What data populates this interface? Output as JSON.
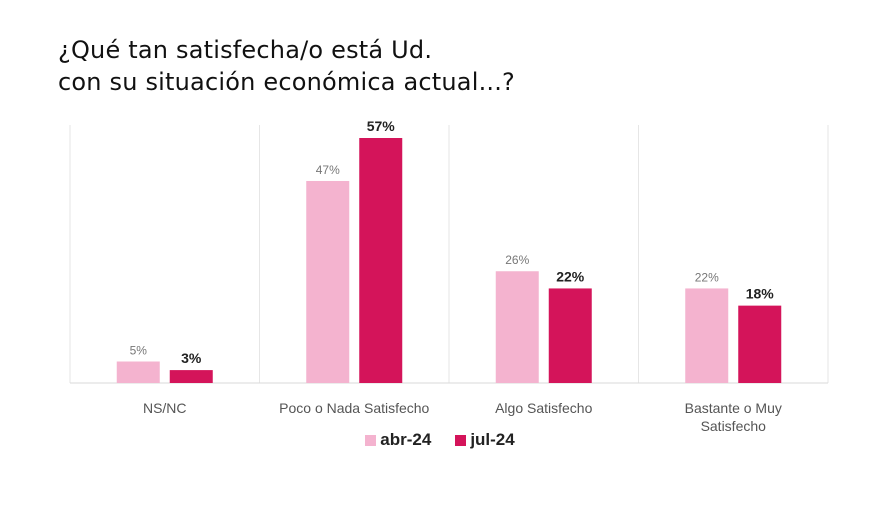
{
  "title_lines": [
    "¿Qué tan satisfecha/o está Ud.",
    "con su situación económica actual...?"
  ],
  "colors": {
    "abr": "#f4b3cf",
    "jul": "#d4145a",
    "grid": "#e6e6e6",
    "label": "#555555"
  },
  "chart_data": {
    "type": "bar",
    "title": "¿Qué tan satisfecha/o está Ud. con su situación económica actual...?",
    "categories": [
      [
        "NS/NC"
      ],
      [
        "Poco o Nada Satisfecho"
      ],
      [
        "Algo Satisfecho"
      ],
      [
        "Bastante o Muy",
        "Satisfecho"
      ]
    ],
    "series": [
      {
        "name": "abr-24",
        "values": [
          5,
          47,
          26,
          22
        ],
        "labels": [
          "5%",
          "47%",
          "26%",
          "22%"
        ]
      },
      {
        "name": "jul-24",
        "values": [
          3,
          57,
          22,
          18
        ],
        "labels": [
          "3%",
          "57%",
          "22%",
          "18%"
        ]
      }
    ],
    "ylim": [
      0,
      60
    ],
    "grid": false,
    "legend": "bottom",
    "xlabel": "",
    "ylabel": ""
  }
}
